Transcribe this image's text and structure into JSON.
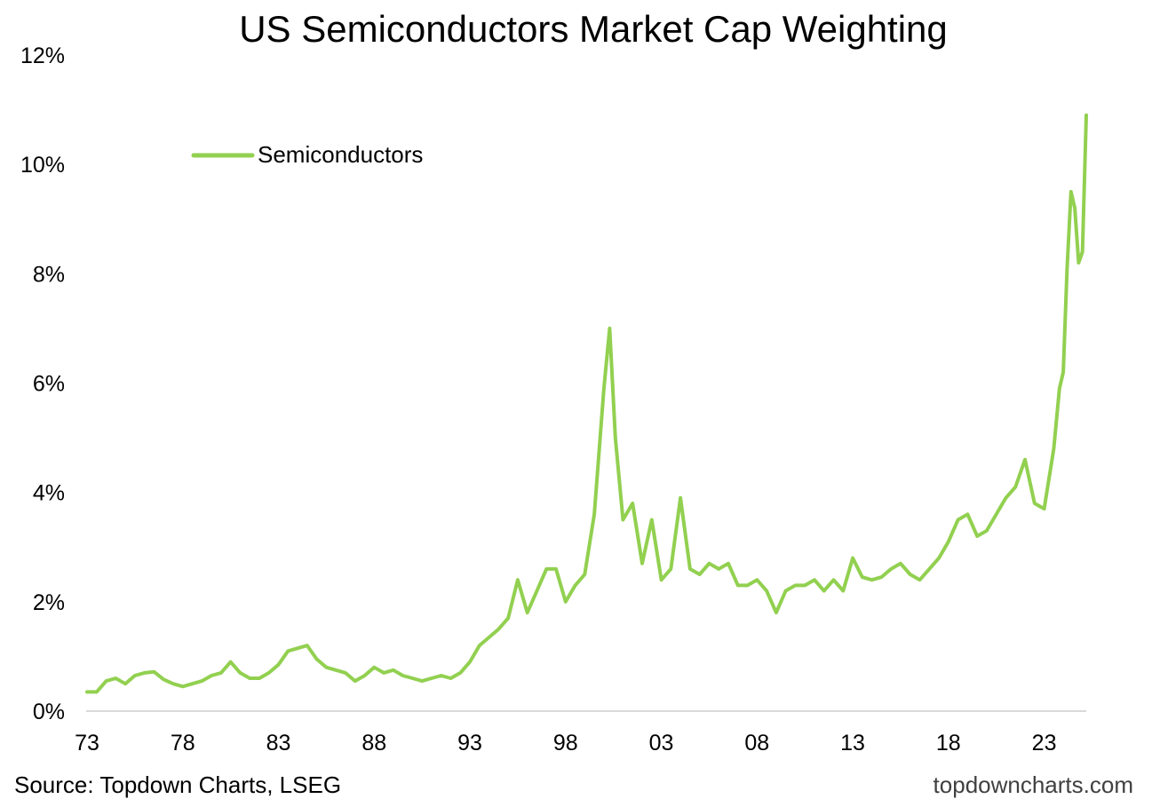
{
  "chart_data": {
    "type": "line",
    "title": "US Semiconductors Market Cap Weighting",
    "xlabel": "",
    "ylabel": "",
    "x_tick_labels": [
      "73",
      "78",
      "83",
      "88",
      "93",
      "98",
      "03",
      "08",
      "13",
      "18",
      "23"
    ],
    "x_tick_years": [
      1973,
      1978,
      1983,
      1988,
      1993,
      1998,
      2003,
      2008,
      2013,
      2018,
      2023
    ],
    "y_tick_labels": [
      "0%",
      "2%",
      "4%",
      "6%",
      "8%",
      "10%",
      "12%"
    ],
    "y_tick_values": [
      0,
      2,
      4,
      6,
      8,
      10,
      12
    ],
    "xlim": [
      1973,
      2025.2
    ],
    "ylim": [
      0,
      12
    ],
    "legend_position": "top-left",
    "series": [
      {
        "name": "Semiconductors",
        "color": "#92d050",
        "x": [
          1973.0,
          1973.5,
          1974.0,
          1974.5,
          1975.0,
          1975.5,
          1976.0,
          1976.5,
          1977.0,
          1977.5,
          1978.0,
          1978.5,
          1979.0,
          1979.5,
          1980.0,
          1980.5,
          1981.0,
          1981.5,
          1982.0,
          1982.5,
          1983.0,
          1983.5,
          1984.0,
          1984.5,
          1985.0,
          1985.5,
          1986.0,
          1986.5,
          1987.0,
          1987.5,
          1988.0,
          1988.5,
          1989.0,
          1989.5,
          1990.0,
          1990.5,
          1991.0,
          1991.5,
          1992.0,
          1992.5,
          1993.0,
          1993.5,
          1994.0,
          1994.5,
          1995.0,
          1995.5,
          1996.0,
          1996.5,
          1997.0,
          1997.5,
          1998.0,
          1998.5,
          1999.0,
          1999.5,
          2000.0,
          2000.3,
          2000.6,
          2001.0,
          2001.5,
          2002.0,
          2002.5,
          2003.0,
          2003.5,
          2004.0,
          2004.5,
          2005.0,
          2005.5,
          2006.0,
          2006.5,
          2007.0,
          2007.5,
          2008.0,
          2008.5,
          2009.0,
          2009.5,
          2010.0,
          2010.5,
          2011.0,
          2011.5,
          2012.0,
          2012.5,
          2013.0,
          2013.5,
          2014.0,
          2014.5,
          2015.0,
          2015.5,
          2016.0,
          2016.5,
          2017.0,
          2017.5,
          2018.0,
          2018.5,
          2019.0,
          2019.5,
          2020.0,
          2020.5,
          2021.0,
          2021.5,
          2022.0,
          2022.5,
          2023.0,
          2023.5,
          2023.8,
          2024.0,
          2024.2,
          2024.4,
          2024.6,
          2024.8,
          2025.0,
          2025.2
        ],
        "values": [
          0.35,
          0.35,
          0.55,
          0.6,
          0.5,
          0.65,
          0.7,
          0.72,
          0.58,
          0.5,
          0.45,
          0.5,
          0.55,
          0.65,
          0.7,
          0.9,
          0.7,
          0.6,
          0.6,
          0.7,
          0.85,
          1.1,
          1.15,
          1.2,
          0.95,
          0.8,
          0.75,
          0.7,
          0.55,
          0.65,
          0.8,
          0.7,
          0.75,
          0.65,
          0.6,
          0.55,
          0.6,
          0.65,
          0.6,
          0.7,
          0.9,
          1.2,
          1.35,
          1.5,
          1.7,
          2.4,
          1.8,
          2.2,
          2.6,
          2.6,
          2.0,
          2.3,
          2.5,
          3.6,
          5.9,
          7.0,
          5.0,
          3.5,
          3.8,
          2.7,
          3.5,
          2.4,
          2.6,
          3.9,
          2.6,
          2.5,
          2.7,
          2.6,
          2.7,
          2.3,
          2.3,
          2.4,
          2.2,
          1.8,
          2.2,
          2.3,
          2.3,
          2.4,
          2.2,
          2.4,
          2.2,
          2.8,
          2.45,
          2.4,
          2.45,
          2.6,
          2.7,
          2.5,
          2.4,
          2.6,
          2.8,
          3.1,
          3.5,
          3.6,
          3.2,
          3.3,
          3.6,
          3.9,
          4.1,
          4.6,
          3.8,
          3.7,
          4.8,
          5.9,
          6.2,
          8.1,
          9.5,
          9.2,
          8.2,
          8.4,
          10.9
        ]
      }
    ]
  },
  "source_text": "Source: Topdown Charts, LSEG",
  "watermark_text": "topdowncharts.com"
}
